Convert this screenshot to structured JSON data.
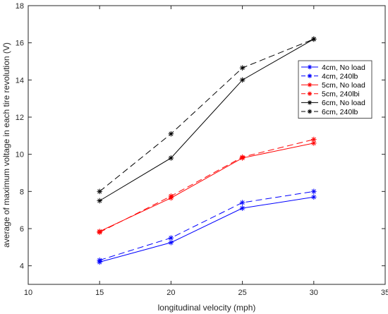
{
  "chart_data": {
    "type": "line",
    "title": "",
    "xlabel": "longitudinal velocity (mph)",
    "ylabel": "average of maximum voltage in each tire revolution (V)",
    "xlim": [
      10,
      35
    ],
    "ylim": [
      3,
      18
    ],
    "xticks": [
      10,
      15,
      20,
      25,
      30,
      35
    ],
    "yticks": [
      4,
      6,
      8,
      10,
      12,
      14,
      16,
      18
    ],
    "grid": false,
    "legend_position": "top-right",
    "x": [
      15,
      20,
      25,
      30
    ],
    "series": [
      {
        "name": "4cm, No load",
        "values": [
          4.2,
          5.25,
          7.1,
          7.7
        ],
        "color": "#0000ff",
        "dash": "solid",
        "marker": "asterisk"
      },
      {
        "name": "4cm, 240lb",
        "values": [
          4.3,
          5.5,
          7.4,
          8.0
        ],
        "color": "#0000ff",
        "dash": "dashed",
        "marker": "asterisk"
      },
      {
        "name": "5cm, No load",
        "values": [
          5.85,
          7.65,
          9.8,
          10.6
        ],
        "color": "#ff0000",
        "dash": "solid",
        "marker": "asterisk"
      },
      {
        "name": "5cm, 240lbi",
        "values": [
          5.8,
          7.75,
          9.85,
          10.8
        ],
        "color": "#ff0000",
        "dash": "dashed",
        "marker": "asterisk"
      },
      {
        "name": "6cm, No load",
        "values": [
          7.5,
          9.8,
          14.0,
          16.2
        ],
        "color": "#000000",
        "dash": "solid",
        "marker": "asterisk"
      },
      {
        "name": "6cm, 240lb",
        "values": [
          8.0,
          11.1,
          14.65,
          16.2
        ],
        "color": "#000000",
        "dash": "dashed",
        "marker": "asterisk"
      }
    ]
  }
}
